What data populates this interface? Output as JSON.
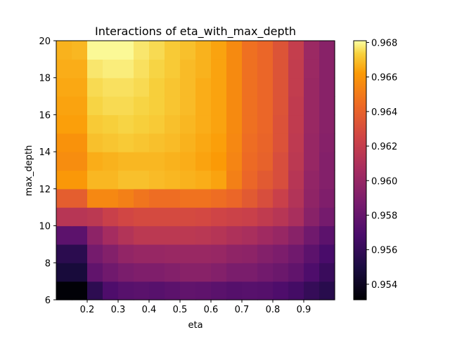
{
  "chart_data": {
    "type": "heatmap",
    "title": "Interactions of eta_with_max_depth",
    "xlabel": "eta",
    "ylabel": "max_depth",
    "x_ticks": [
      "0.2",
      "0.3",
      "0.4",
      "0.5",
      "0.6",
      "0.7",
      "0.8",
      "0.9"
    ],
    "y_ticks": [
      "6",
      "8",
      "10",
      "12",
      "14",
      "16",
      "18",
      "20"
    ],
    "colorbar_ticks": [
      "0.954",
      "0.956",
      "0.958",
      "0.960",
      "0.962",
      "0.964",
      "0.966",
      "0.968"
    ],
    "x_range": [
      0.1,
      1.0
    ],
    "y_range": [
      6,
      20
    ],
    "colorbar_range": [
      0.9531,
      0.9681
    ],
    "colormap": "inferno",
    "grid": false,
    "eta_values": [
      0.1,
      0.15,
      0.2,
      0.25,
      0.3,
      0.35,
      0.4,
      0.45,
      0.5,
      0.55,
      0.6,
      0.65,
      0.7,
      0.75,
      0.8,
      0.85,
      0.9,
      0.95,
      1.0
    ],
    "max_depth_values": [
      6,
      7,
      8,
      9,
      10,
      11,
      12,
      13,
      14,
      15,
      16,
      17,
      18,
      19,
      20
    ],
    "z_rows_bottom_to_top": [
      [
        0.9532,
        0.9532,
        0.9557,
        0.957,
        0.9574,
        0.9575,
        0.9574,
        0.9576,
        0.9578,
        0.9577,
        0.9575,
        0.9573,
        0.9574,
        0.9573,
        0.957,
        0.9566,
        0.956,
        0.9555
      ],
      [
        0.9548,
        0.9548,
        0.9578,
        0.9584,
        0.9588,
        0.959,
        0.959,
        0.9592,
        0.9594,
        0.9594,
        0.9592,
        0.9588,
        0.9588,
        0.9585,
        0.9582,
        0.9578,
        0.957,
        0.9562
      ],
      [
        0.9556,
        0.9556,
        0.9586,
        0.9592,
        0.9598,
        0.96,
        0.96,
        0.9601,
        0.9601,
        0.9601,
        0.96,
        0.9597,
        0.9596,
        0.9592,
        0.9589,
        0.9584,
        0.9576,
        0.9568
      ],
      [
        0.9576,
        0.9576,
        0.9596,
        0.9606,
        0.9612,
        0.9616,
        0.9616,
        0.9616,
        0.9616,
        0.9615,
        0.9613,
        0.961,
        0.9608,
        0.9604,
        0.96,
        0.9594,
        0.9584,
        0.9576
      ],
      [
        0.9614,
        0.9614,
        0.9616,
        0.9622,
        0.9626,
        0.9628,
        0.9628,
        0.9628,
        0.9628,
        0.9627,
        0.9625,
        0.9623,
        0.9622,
        0.9618,
        0.9614,
        0.9608,
        0.9594,
        0.9586
      ],
      [
        0.9638,
        0.9638,
        0.9655,
        0.9655,
        0.9652,
        0.9648,
        0.9645,
        0.9645,
        0.9647,
        0.9647,
        0.9645,
        0.9642,
        0.9636,
        0.963,
        0.9622,
        0.9612,
        0.9597,
        0.959
      ],
      [
        0.9661,
        0.9661,
        0.9668,
        0.9668,
        0.967,
        0.967,
        0.9669,
        0.9668,
        0.9667,
        0.9666,
        0.9664,
        0.9652,
        0.9642,
        0.9636,
        0.963,
        0.9614,
        0.9598,
        0.9592
      ],
      [
        0.9657,
        0.9657,
        0.9666,
        0.9667,
        0.9668,
        0.9668,
        0.9668,
        0.9667,
        0.9666,
        0.9664,
        0.9662,
        0.9654,
        0.9644,
        0.964,
        0.963,
        0.9616,
        0.96,
        0.9592
      ],
      [
        0.9659,
        0.9659,
        0.967,
        0.9671,
        0.9672,
        0.9671,
        0.967,
        0.9669,
        0.9667,
        0.9665,
        0.9663,
        0.9655,
        0.9645,
        0.9641,
        0.9632,
        0.9617,
        0.96,
        0.9593
      ],
      [
        0.9663,
        0.9663,
        0.9672,
        0.9673,
        0.9674,
        0.9673,
        0.9672,
        0.967,
        0.9668,
        0.9666,
        0.9664,
        0.9656,
        0.9646,
        0.9642,
        0.9632,
        0.9618,
        0.9601,
        0.9594
      ],
      [
        0.9664,
        0.9664,
        0.9674,
        0.9675,
        0.9675,
        0.9674,
        0.9673,
        0.9671,
        0.9669,
        0.9666,
        0.9664,
        0.9656,
        0.9646,
        0.9642,
        0.9633,
        0.9618,
        0.9601,
        0.9594
      ],
      [
        0.9665,
        0.9665,
        0.9675,
        0.9676,
        0.9676,
        0.9675,
        0.9673,
        0.9671,
        0.9669,
        0.9666,
        0.9664,
        0.9656,
        0.9646,
        0.9642,
        0.9633,
        0.9619,
        0.9601,
        0.9594
      ],
      [
        0.9666,
        0.9666,
        0.9677,
        0.9678,
        0.9678,
        0.9676,
        0.9674,
        0.9672,
        0.9669,
        0.9667,
        0.9664,
        0.9656,
        0.9646,
        0.9642,
        0.9633,
        0.9619,
        0.9602,
        0.9594
      ],
      [
        0.9667,
        0.9668,
        0.968,
        0.968,
        0.968,
        0.9677,
        0.9675,
        0.9672,
        0.967,
        0.9667,
        0.9664,
        0.9656,
        0.9646,
        0.9642,
        0.9633,
        0.962,
        0.9602,
        0.9594
      ]
    ]
  }
}
